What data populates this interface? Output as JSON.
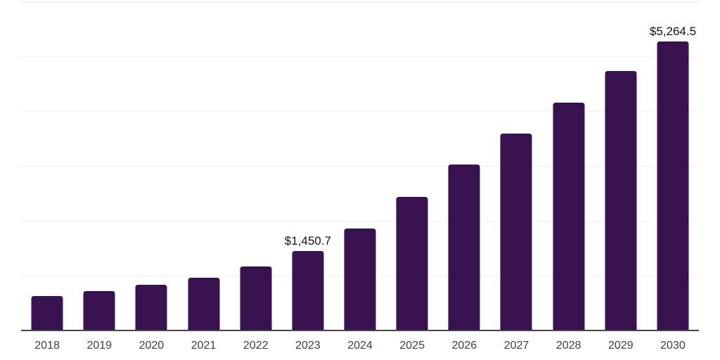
{
  "chart_data": {
    "type": "bar",
    "title": "",
    "xlabel": "",
    "ylabel": "",
    "categories": [
      "2018",
      "2019",
      "2020",
      "2021",
      "2022",
      "2023",
      "2024",
      "2025",
      "2026",
      "2027",
      "2028",
      "2029",
      "2030"
    ],
    "values": [
      630,
      725,
      835,
      960,
      1173,
      1450.7,
      1854,
      2440,
      3020,
      3590,
      4156,
      4735,
      5264.5
    ],
    "bar_labels": [
      "",
      "",
      "",
      "",
      "",
      "$1,450.7",
      "",
      "",
      "",
      "",
      "",
      "",
      "$5,264.5"
    ],
    "ylim": [
      0,
      6000
    ],
    "ytick_step": 1000,
    "grid": "horizontal",
    "legend": "none",
    "colors": {
      "bar": "#38124e",
      "grid": "#f0f0f0",
      "axis": "#454545",
      "tick_text": "#3f3f3f",
      "value_text": "#131313"
    }
  }
}
